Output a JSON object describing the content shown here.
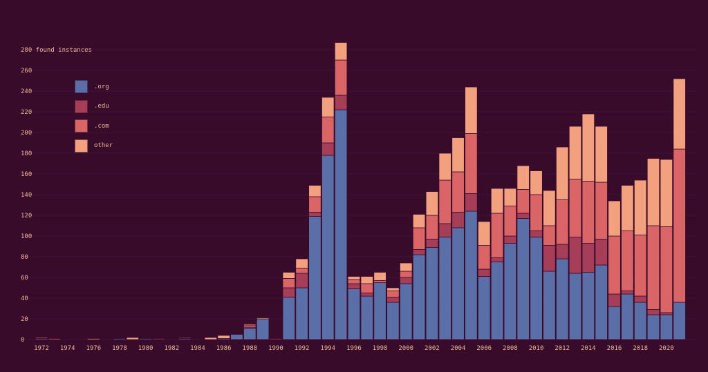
{
  "chart_data": {
    "type": "bar",
    "stacked": true,
    "title": "",
    "xlabel": "",
    "ylabel": "found instances",
    "top_tick_label": "280 found instances",
    "ylim": [
      0,
      280
    ],
    "yticks": [
      0,
      20,
      40,
      60,
      80,
      100,
      120,
      140,
      160,
      180,
      200,
      220,
      240,
      260,
      280
    ],
    "grid": "horizontal",
    "legend_position": "upper-left",
    "xtick_labels": [
      "1972",
      "1974",
      "1976",
      "1978",
      "1980",
      "1982",
      "1984",
      "1986",
      "1988",
      "1990",
      "1992",
      "1994",
      "1996",
      "1998",
      "2000",
      "2002",
      "2004",
      "2006",
      "2008",
      "2010",
      "2012",
      "2014",
      "2016",
      "2018",
      "2020"
    ],
    "categories": [
      "1972",
      "1973",
      "1974",
      "1975",
      "1976",
      "1977",
      "1978",
      "1979",
      "1980",
      "1981",
      "1982",
      "1983",
      "1984",
      "1985",
      "1986",
      "1987",
      "1988",
      "1989",
      "1990",
      "1991",
      "1992",
      "1993",
      "1994",
      "1995",
      "1996",
      "1997",
      "1998",
      "1999",
      "2000",
      "2001",
      "2002",
      "2003",
      "2004",
      "2005",
      "2006",
      "2007",
      "2008",
      "2009",
      "2010",
      "2011",
      "2012",
      "2013",
      "2014",
      "2015",
      "2016",
      "2017",
      "2018",
      "2019",
      "2020",
      "2021"
    ],
    "series": [
      {
        "name": ".org",
        "color": "#5a6ea8",
        "values": [
          1,
          0,
          0,
          0,
          0,
          0,
          1,
          0,
          1,
          0,
          0,
          1,
          0,
          0,
          1,
          5,
          11,
          20,
          0,
          41,
          50,
          119,
          178,
          222,
          49,
          42,
          55,
          36,
          54,
          82,
          89,
          99,
          108,
          124,
          61,
          75,
          93,
          117,
          99,
          66,
          78,
          64,
          65,
          72,
          32,
          44,
          36,
          24,
          24,
          36
        ]
      },
      {
        "name": ".edu",
        "color": "#a63e57",
        "values": [
          0,
          0,
          0,
          0,
          0,
          0,
          0,
          0,
          0,
          1,
          0,
          1,
          0,
          0,
          0,
          0,
          1,
          0,
          1,
          9,
          14,
          4,
          12,
          14,
          5,
          3,
          0,
          5,
          6,
          5,
          8,
          13,
          15,
          17,
          7,
          4,
          7,
          5,
          6,
          25,
          14,
          35,
          28,
          25,
          12,
          3,
          6,
          5,
          2,
          0
        ]
      },
      {
        "name": ".com",
        "color": "#da6567",
        "values": [
          1,
          1,
          0,
          0,
          0,
          0,
          0,
          0,
          0,
          0,
          0,
          0,
          0,
          0,
          0,
          0,
          2,
          0,
          0,
          9,
          5,
          15,
          25,
          34,
          4,
          9,
          2,
          6,
          6,
          21,
          23,
          42,
          39,
          58,
          23,
          43,
          29,
          23,
          35,
          19,
          43,
          56,
          60,
          55,
          56,
          58,
          59,
          81,
          83,
          148
        ]
      },
      {
        "name": "other",
        "color": "#f3a07f",
        "values": [
          0,
          0,
          0,
          0,
          1,
          0,
          0,
          2,
          0,
          0,
          0,
          0,
          0,
          2,
          3,
          0,
          1,
          1,
          0,
          6,
          9,
          11,
          19,
          17,
          3,
          7,
          8,
          3,
          8,
          13,
          23,
          26,
          33,
          45,
          23,
          24,
          17,
          23,
          23,
          34,
          51,
          51,
          65,
          54,
          34,
          44,
          53,
          65,
          65,
          68
        ]
      }
    ]
  },
  "theme": {
    "background": "#380b2a",
    "text": "#e9b894",
    "grid": "#44123a",
    "bar_stroke": "#3a0b2c"
  }
}
